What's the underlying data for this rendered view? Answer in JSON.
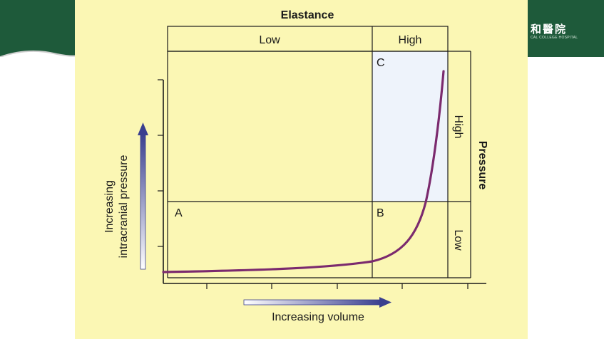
{
  "logo": {
    "text": "和醫院",
    "subtext": "CAL COLLEGE HOSPITAL"
  },
  "diagram": {
    "top_label": "Elastance",
    "elastance_low": "Low",
    "elastance_high": "High",
    "side_label": "Pressure",
    "pressure_high": "High",
    "pressure_low": "Low",
    "region_a": "A",
    "region_b": "B",
    "region_c": "C",
    "y_axis_line1": "Increasing",
    "y_axis_line2": "intracranial pressure",
    "x_axis_label": "Increasing volume"
  },
  "colors": {
    "slide_bg": "#fbf7b4",
    "curve": "#7b2a6e",
    "region_c_fill": "#eef3fb",
    "arrow": "#3a3f8f",
    "header_band": "#1e5a3a"
  }
}
